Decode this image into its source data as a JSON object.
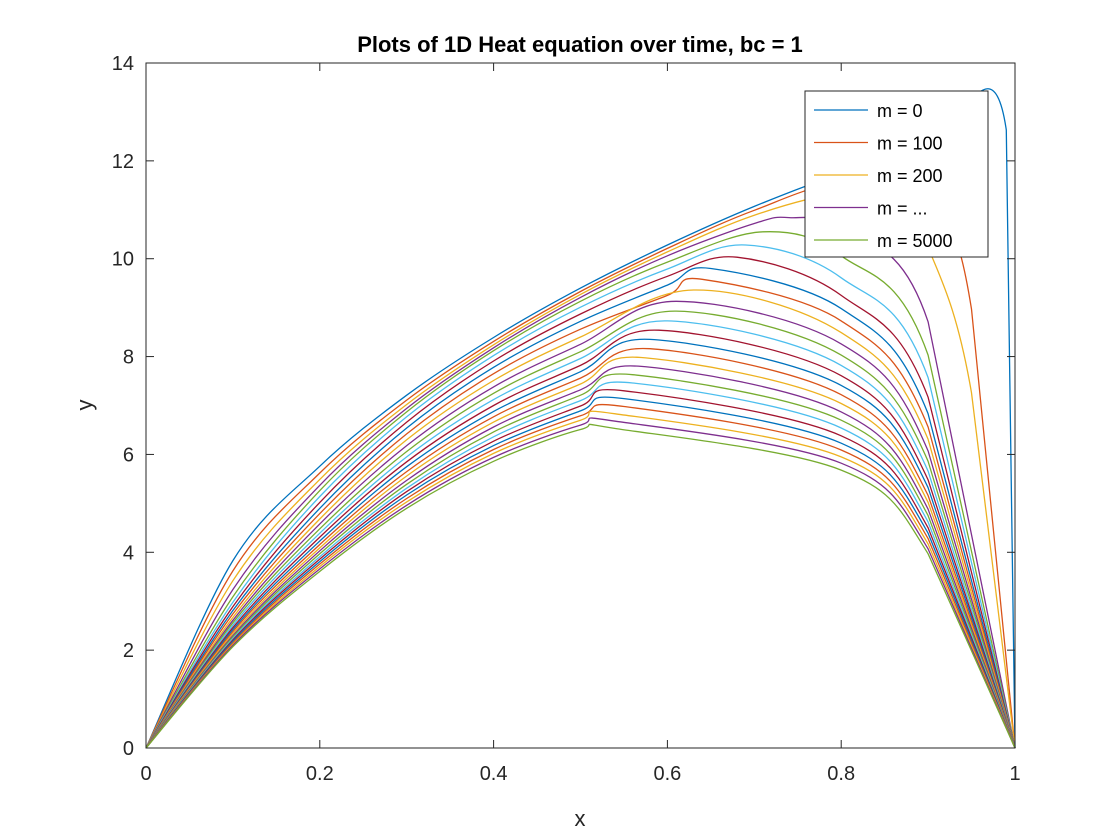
{
  "chart_data": {
    "type": "line",
    "title": "Plots of 1D Heat equation over time, bc = 1",
    "xlabel": "x",
    "ylabel": "y",
    "xlim": [
      0,
      1
    ],
    "ylim": [
      0,
      14
    ],
    "xticks": [
      "0",
      "0.2",
      "0.4",
      "0.6",
      "0.8",
      "1"
    ],
    "yticks": [
      "0",
      "2",
      "4",
      "6",
      "8",
      "10",
      "12",
      "14"
    ],
    "grid": false,
    "legend_position": "top-right",
    "legend": [
      {
        "label": "m = 0",
        "color": "#0072BD"
      },
      {
        "label": "m = 100",
        "color": "#D95319"
      },
      {
        "label": "m = 200",
        "color": "#EDB120"
      },
      {
        "label": "m = ...",
        "color": "#7E2F8E"
      },
      {
        "label": "m = 5000",
        "color": "#77AC30"
      }
    ],
    "colors": [
      "#0072BD",
      "#D95319",
      "#EDB120",
      "#7E2F8E",
      "#77AC30",
      "#4DBEEE",
      "#A2142F"
    ],
    "series": [
      {
        "x": [
          0,
          0.1,
          0.2,
          0.3,
          0.4,
          0.5,
          0.6,
          0.7,
          0.8,
          0.9,
          0.99,
          1.0
        ],
        "values": [
          0,
          3.83,
          5.76,
          7.21,
          8.39,
          9.4,
          10.28,
          11.07,
          11.74,
          12.24,
          12.63,
          0
        ]
      },
      {
        "x": [
          0,
          0.1,
          0.2,
          0.3,
          0.4,
          0.5,
          0.6,
          0.7,
          0.8,
          0.9,
          0.95,
          1.0
        ],
        "values": [
          0,
          3.62,
          5.62,
          7.11,
          8.31,
          9.33,
          10.21,
          10.99,
          11.52,
          10.99,
          8.97,
          0
        ]
      },
      {
        "x": [
          0,
          0.1,
          0.2,
          0.3,
          0.4,
          0.5,
          0.6,
          0.7,
          0.8,
          0.86,
          0.9,
          0.95,
          1.0
        ],
        "values": [
          0,
          3.42,
          5.49,
          7.02,
          8.24,
          9.27,
          10.14,
          10.89,
          11.34,
          11.19,
          10.23,
          7.26,
          0
        ]
      },
      {
        "x": [
          0,
          0.1,
          0.2,
          0.3,
          0.4,
          0.5,
          0.6,
          0.7,
          0.74,
          0.8,
          0.9,
          1.0
        ],
        "values": [
          0,
          3.24,
          5.37,
          6.94,
          8.18,
          9.21,
          10.06,
          10.72,
          10.84,
          10.59,
          8.71,
          0
        ]
      },
      {
        "x": [
          0,
          0.1,
          0.2,
          0.3,
          0.4,
          0.5,
          0.6,
          0.71,
          0.8,
          0.9,
          1.0
        ],
        "values": [
          0,
          3.09,
          5.26,
          6.87,
          8.12,
          9.13,
          9.93,
          10.55,
          10.06,
          8.03,
          0
        ]
      },
      {
        "x": [
          0,
          0.1,
          0.2,
          0.3,
          0.4,
          0.5,
          0.6,
          0.69,
          0.8,
          0.9,
          1.0
        ],
        "values": [
          0,
          2.98,
          5.14,
          6.77,
          8.02,
          9.01,
          9.79,
          10.28,
          9.61,
          7.57,
          0
        ]
      },
      {
        "x": [
          0,
          0.1,
          0.2,
          0.3,
          0.4,
          0.5,
          0.6,
          0.68,
          0.8,
          0.9,
          1.0
        ],
        "values": [
          0,
          2.89,
          5.02,
          6.66,
          7.91,
          8.87,
          9.64,
          10.03,
          9.25,
          7.17,
          0
        ]
      },
      {
        "x": [
          0,
          0.1,
          0.2,
          0.3,
          0.4,
          0.5,
          0.6,
          0.65,
          0.8,
          0.9,
          1.0
        ],
        "values": [
          0,
          2.81,
          4.9,
          6.54,
          7.78,
          8.72,
          9.46,
          9.8,
          8.98,
          6.83,
          0
        ]
      },
      {
        "x": [
          0,
          0.1,
          0.2,
          0.3,
          0.4,
          0.5,
          0.6,
          0.64,
          0.8,
          0.9,
          1.0
        ],
        "values": [
          0,
          2.74,
          4.79,
          6.42,
          7.65,
          8.56,
          9.25,
          9.58,
          8.73,
          6.56,
          0
        ]
      },
      {
        "x": [
          0,
          0.1,
          0.2,
          0.3,
          0.4,
          0.5,
          0.63,
          0.8,
          0.9,
          1.0
        ],
        "values": [
          0,
          2.67,
          4.68,
          6.3,
          7.51,
          8.4,
          9.36,
          8.49,
          6.31,
          0
        ]
      },
      {
        "x": [
          0,
          0.1,
          0.2,
          0.3,
          0.4,
          0.5,
          0.61,
          0.8,
          0.9,
          1.0
        ],
        "values": [
          0,
          2.61,
          4.58,
          6.18,
          7.38,
          8.25,
          9.13,
          8.26,
          6.07,
          0
        ]
      },
      {
        "x": [
          0,
          0.1,
          0.2,
          0.3,
          0.4,
          0.5,
          0.61,
          0.8,
          0.9,
          1.0
        ],
        "values": [
          0,
          2.56,
          4.48,
          6.06,
          7.25,
          8.1,
          8.93,
          8.03,
          5.86,
          0
        ]
      },
      {
        "x": [
          0,
          0.1,
          0.2,
          0.3,
          0.4,
          0.5,
          0.6,
          0.8,
          0.9,
          1.0
        ],
        "values": [
          0,
          2.51,
          4.39,
          5.95,
          7.12,
          7.96,
          8.73,
          7.82,
          5.66,
          0
        ]
      },
      {
        "x": [
          0,
          0.1,
          0.2,
          0.3,
          0.4,
          0.5,
          0.59,
          0.8,
          0.9,
          1.0
        ],
        "values": [
          0,
          2.46,
          4.31,
          5.85,
          7.0,
          7.82,
          8.54,
          7.61,
          5.48,
          0
        ]
      },
      {
        "x": [
          0,
          0.1,
          0.2,
          0.3,
          0.4,
          0.5,
          0.58,
          0.8,
          0.9,
          1.0
        ],
        "values": [
          0,
          2.42,
          4.23,
          5.75,
          6.88,
          7.69,
          8.35,
          7.41,
          5.32,
          0
        ]
      },
      {
        "x": [
          0,
          0.1,
          0.2,
          0.3,
          0.4,
          0.5,
          0.58,
          0.8,
          0.9,
          1.0
        ],
        "values": [
          0,
          2.38,
          4.16,
          5.65,
          6.77,
          7.56,
          8.16,
          7.22,
          5.16,
          0
        ]
      },
      {
        "x": [
          0,
          0.1,
          0.2,
          0.3,
          0.4,
          0.5,
          0.57,
          0.8,
          0.9,
          1.0
        ],
        "values": [
          0,
          2.34,
          4.09,
          5.56,
          6.66,
          7.44,
          7.98,
          7.04,
          5.02,
          0
        ]
      },
      {
        "x": [
          0,
          0.1,
          0.2,
          0.3,
          0.4,
          0.5,
          0.57,
          0.8,
          0.9,
          1.0
        ],
        "values": [
          0,
          2.3,
          4.03,
          5.47,
          6.56,
          7.32,
          7.8,
          6.87,
          4.88,
          0
        ]
      },
      {
        "x": [
          0,
          0.1,
          0.2,
          0.3,
          0.4,
          0.5,
          0.56,
          0.8,
          0.9,
          1.0
        ],
        "values": [
          0,
          2.27,
          3.97,
          5.39,
          6.46,
          7.21,
          7.63,
          6.7,
          4.75,
          0
        ]
      },
      {
        "x": [
          0,
          0.1,
          0.2,
          0.3,
          0.4,
          0.5,
          0.56,
          0.8,
          0.9,
          1.0
        ],
        "values": [
          0,
          2.24,
          3.91,
          5.31,
          6.36,
          7.1,
          7.46,
          6.54,
          4.62,
          0
        ]
      },
      {
        "x": [
          0,
          0.1,
          0.2,
          0.3,
          0.4,
          0.5,
          0.55,
          0.8,
          0.9,
          1.0
        ],
        "values": [
          0,
          2.21,
          3.86,
          5.24,
          6.27,
          6.99,
          7.3,
          6.38,
          4.5,
          0
        ]
      },
      {
        "x": [
          0,
          0.1,
          0.2,
          0.3,
          0.4,
          0.5,
          0.55,
          0.8,
          0.9,
          1.0
        ],
        "values": [
          0,
          2.18,
          3.81,
          5.17,
          6.18,
          6.89,
          7.14,
          6.23,
          4.39,
          0
        ]
      },
      {
        "x": [
          0,
          0.1,
          0.2,
          0.3,
          0.4,
          0.5,
          0.55,
          0.8,
          0.9,
          1.0
        ],
        "values": [
          0,
          2.15,
          3.76,
          5.1,
          6.1,
          6.79,
          6.98,
          6.09,
          4.28,
          0
        ]
      },
      {
        "x": [
          0,
          0.1,
          0.2,
          0.3,
          0.4,
          0.5,
          0.54,
          0.8,
          0.9,
          1.0
        ],
        "values": [
          0,
          2.12,
          3.71,
          5.03,
          6.02,
          6.7,
          6.83,
          5.95,
          4.17,
          0
        ]
      },
      {
        "x": [
          0,
          0.1,
          0.2,
          0.3,
          0.4,
          0.5,
          0.54,
          0.8,
          0.9,
          1.0
        ],
        "values": [
          0,
          2.1,
          3.66,
          4.96,
          5.94,
          6.6,
          6.68,
          5.82,
          4.07,
          0
        ]
      },
      {
        "x": [
          0,
          0.1,
          0.2,
          0.3,
          0.4,
          0.5,
          0.54,
          0.8,
          0.9,
          1.0
        ],
        "values": [
          0,
          2.07,
          3.61,
          4.9,
          5.86,
          6.51,
          6.53,
          5.68,
          3.97,
          0
        ]
      }
    ]
  }
}
